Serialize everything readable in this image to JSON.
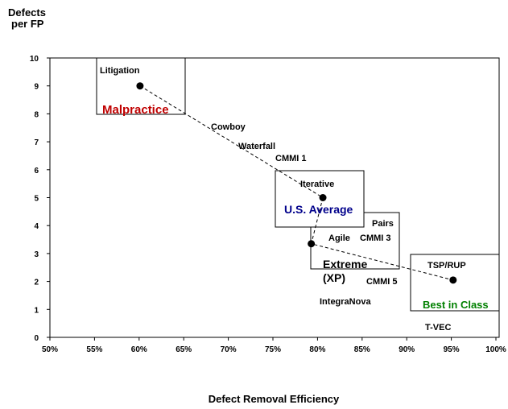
{
  "chart_data": {
    "type": "scatter",
    "y_label": [
      "Defects",
      "per FP"
    ],
    "x_label": "Defect Removal Efficiency",
    "xlim": [
      50,
      100
    ],
    "xticks": [
      {
        "value": 50,
        "label": "50%"
      },
      {
        "value": 55,
        "label": "55%"
      },
      {
        "value": 60,
        "label": "60%"
      },
      {
        "value": 65,
        "label": "65%"
      },
      {
        "value": 70,
        "label": "70%"
      },
      {
        "value": 75,
        "label": "75%"
      },
      {
        "value": 80,
        "label": "80%"
      },
      {
        "value": 85,
        "label": "85%"
      },
      {
        "value": 90,
        "label": "90%"
      },
      {
        "value": 95,
        "label": "95%"
      },
      {
        "value": 100,
        "label": "100%"
      }
    ],
    "ylim": [
      0,
      10
    ],
    "yticks": [
      0,
      1,
      2,
      3,
      4,
      5,
      6,
      7,
      8,
      9,
      10
    ],
    "labels": [
      "Litigation",
      "Iterative",
      "Agile",
      "TSP/RUP"
    ],
    "x": [
      60.1,
      80.6,
      79.3,
      95.2
    ],
    "values": [
      9.0,
      5.0,
      3.35,
      2.05
    ],
    "color": "#000000",
    "annotations": [
      "Malpractice",
      "Cowboy",
      "Waterfall",
      "CMMI 1",
      "U.S. Average",
      "Pairs",
      "CMMI 3",
      "Extreme",
      "(XP)",
      "CMMI 5",
      "IntegraNova",
      "Best in Class",
      "T-VEC"
    ],
    "annotation_colors": [
      "#c00000",
      "#000000",
      "#000000",
      "#000000",
      "#00008b",
      "#000000",
      "#000000",
      "#000000",
      "#000000",
      "#000000",
      "#000000",
      "#008000",
      "#000000"
    ]
  }
}
